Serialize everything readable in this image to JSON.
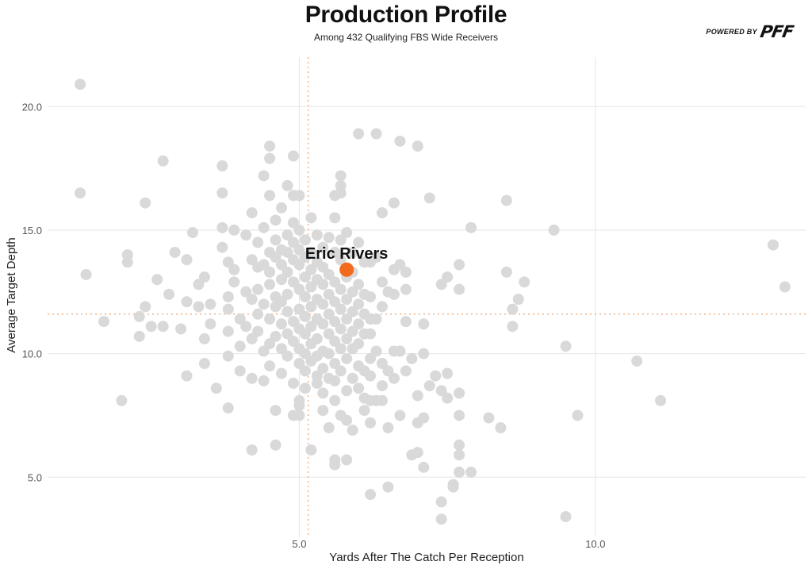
{
  "header": {
    "title": "Production Profile",
    "subtitle": "Among 432 Qualifying FBS Wide Receivers"
  },
  "brand": {
    "label": "POWERED BY",
    "name": "PFF"
  },
  "colors": {
    "points": "#d9d9d9",
    "highlight": "#f26a1b",
    "reference_lines": "#f4b183",
    "grid": "#e6e6e6"
  },
  "chart_data": {
    "type": "scatter",
    "title": "Production Profile",
    "subtitle": "Among 432 Qualifying FBS Wide Receivers",
    "xlabel": "Yards After The Catch Per Reception",
    "ylabel": "Average Target Depth",
    "xlim": [
      0.75,
      13.55
    ],
    "ylim": [
      2.6,
      22.0
    ],
    "x_ticks": [
      "5.0",
      "10.0"
    ],
    "y_ticks": [
      "5.0",
      "10.0",
      "15.0",
      "20.0"
    ],
    "grid": true,
    "reference_lines": {
      "x": 5.15,
      "y": 11.6
    },
    "highlight": {
      "name": "Eric Rivers",
      "x": 5.8,
      "y": 13.4
    },
    "points": [
      [
        1.3,
        20.9
      ],
      [
        1.3,
        16.5
      ],
      [
        1.4,
        13.2
      ],
      [
        1.7,
        11.3
      ],
      [
        2.0,
        8.1
      ],
      [
        2.1,
        14.0
      ],
      [
        2.1,
        13.7
      ],
      [
        2.3,
        11.5
      ],
      [
        2.3,
        10.7
      ],
      [
        2.4,
        11.9
      ],
      [
        2.4,
        16.1
      ],
      [
        2.5,
        11.1
      ],
      [
        2.6,
        13.0
      ],
      [
        2.7,
        17.8
      ],
      [
        2.7,
        11.1
      ],
      [
        2.8,
        12.4
      ],
      [
        2.9,
        14.1
      ],
      [
        3.0,
        11.0
      ],
      [
        3.1,
        13.8
      ],
      [
        3.1,
        12.1
      ],
      [
        3.1,
        9.1
      ],
      [
        3.2,
        14.9
      ],
      [
        3.3,
        12.8
      ],
      [
        3.3,
        11.9
      ],
      [
        3.4,
        13.1
      ],
      [
        3.4,
        10.6
      ],
      [
        3.4,
        9.6
      ],
      [
        3.5,
        12.0
      ],
      [
        3.5,
        11.2
      ],
      [
        3.6,
        8.6
      ],
      [
        3.7,
        17.6
      ],
      [
        3.7,
        16.5
      ],
      [
        3.7,
        15.1
      ],
      [
        3.7,
        14.3
      ],
      [
        3.8,
        13.7
      ],
      [
        3.8,
        12.3
      ],
      [
        3.8,
        11.8
      ],
      [
        3.8,
        10.9
      ],
      [
        3.8,
        9.9
      ],
      [
        3.8,
        7.8
      ],
      [
        3.9,
        15.0
      ],
      [
        3.9,
        13.4
      ],
      [
        3.9,
        12.9
      ],
      [
        4.0,
        11.4
      ],
      [
        4.0,
        10.3
      ],
      [
        4.0,
        9.3
      ],
      [
        4.1,
        14.8
      ],
      [
        4.1,
        12.5
      ],
      [
        4.1,
        11.1
      ],
      [
        4.2,
        15.7
      ],
      [
        4.2,
        13.8
      ],
      [
        4.2,
        12.2
      ],
      [
        4.2,
        10.6
      ],
      [
        4.2,
        9.0
      ],
      [
        4.2,
        6.1
      ],
      [
        4.3,
        14.5
      ],
      [
        4.3,
        13.5
      ],
      [
        4.3,
        12.6
      ],
      [
        4.3,
        11.6
      ],
      [
        4.3,
        10.9
      ],
      [
        4.4,
        17.2
      ],
      [
        4.4,
        15.1
      ],
      [
        4.4,
        13.6
      ],
      [
        4.4,
        12.0
      ],
      [
        4.4,
        10.1
      ],
      [
        4.4,
        8.9
      ],
      [
        4.5,
        18.4
      ],
      [
        4.5,
        17.9
      ],
      [
        4.5,
        16.4
      ],
      [
        4.5,
        14.1
      ],
      [
        4.5,
        13.3
      ],
      [
        4.5,
        12.8
      ],
      [
        4.5,
        11.4
      ],
      [
        4.5,
        10.4
      ],
      [
        4.5,
        9.5
      ],
      [
        4.6,
        15.4
      ],
      [
        4.6,
        14.6
      ],
      [
        4.6,
        13.9
      ],
      [
        4.6,
        12.3
      ],
      [
        4.6,
        11.9
      ],
      [
        4.6,
        10.7
      ],
      [
        4.6,
        7.7
      ],
      [
        4.6,
        6.3
      ],
      [
        4.7,
        15.9
      ],
      [
        4.7,
        14.2
      ],
      [
        4.7,
        13.6
      ],
      [
        4.7,
        13.0
      ],
      [
        4.7,
        12.1
      ],
      [
        4.7,
        11.2
      ],
      [
        4.7,
        10.2
      ],
      [
        4.7,
        9.2
      ],
      [
        4.8,
        16.8
      ],
      [
        4.8,
        14.8
      ],
      [
        4.8,
        14.1
      ],
      [
        4.8,
        13.3
      ],
      [
        4.8,
        12.4
      ],
      [
        4.8,
        11.7
      ],
      [
        4.8,
        10.8
      ],
      [
        4.8,
        9.9
      ],
      [
        4.9,
        18.0
      ],
      [
        4.9,
        16.4
      ],
      [
        4.9,
        15.3
      ],
      [
        4.9,
        14.5
      ],
      [
        4.9,
        13.8
      ],
      [
        4.9,
        12.9
      ],
      [
        4.9,
        11.3
      ],
      [
        4.9,
        10.5
      ],
      [
        4.9,
        8.8
      ],
      [
        4.9,
        7.5
      ],
      [
        5.0,
        16.4
      ],
      [
        5.0,
        15.0
      ],
      [
        5.0,
        14.2
      ],
      [
        5.0,
        13.6
      ],
      [
        5.0,
        12.6
      ],
      [
        5.0,
        11.8
      ],
      [
        5.0,
        11.0
      ],
      [
        5.0,
        10.2
      ],
      [
        5.0,
        9.6
      ],
      [
        5.0,
        8.1
      ],
      [
        5.0,
        7.9
      ],
      [
        5.0,
        7.5
      ],
      [
        5.1,
        14.6
      ],
      [
        5.1,
        13.9
      ],
      [
        5.1,
        13.1
      ],
      [
        5.1,
        12.3
      ],
      [
        5.1,
        11.5
      ],
      [
        5.1,
        10.8
      ],
      [
        5.1,
        10.0
      ],
      [
        5.1,
        9.3
      ],
      [
        5.1,
        8.6
      ],
      [
        5.2,
        15.5
      ],
      [
        5.2,
        14.1
      ],
      [
        5.2,
        13.4
      ],
      [
        5.2,
        12.7
      ],
      [
        5.2,
        11.9
      ],
      [
        5.2,
        11.1
      ],
      [
        5.2,
        10.4
      ],
      [
        5.2,
        9.7
      ],
      [
        5.2,
        6.1
      ],
      [
        5.3,
        14.8
      ],
      [
        5.3,
        13.7
      ],
      [
        5.3,
        13.0
      ],
      [
        5.3,
        12.2
      ],
      [
        5.3,
        11.4
      ],
      [
        5.3,
        10.6
      ],
      [
        5.3,
        9.9
      ],
      [
        5.3,
        9.1
      ],
      [
        5.3,
        8.8
      ],
      [
        5.4,
        14.3
      ],
      [
        5.4,
        13.5
      ],
      [
        5.4,
        12.8
      ],
      [
        5.4,
        12.0
      ],
      [
        5.4,
        11.2
      ],
      [
        5.4,
        10.1
      ],
      [
        5.4,
        9.4
      ],
      [
        5.4,
        8.4
      ],
      [
        5.4,
        7.7
      ],
      [
        5.5,
        14.7
      ],
      [
        5.5,
        13.2
      ],
      [
        5.5,
        12.4
      ],
      [
        5.5,
        11.6
      ],
      [
        5.5,
        10.8
      ],
      [
        5.5,
        10.0
      ],
      [
        5.5,
        9.0
      ],
      [
        5.5,
        7.0
      ],
      [
        5.6,
        16.4
      ],
      [
        5.6,
        15.5
      ],
      [
        5.6,
        14.1
      ],
      [
        5.6,
        12.9
      ],
      [
        5.6,
        12.1
      ],
      [
        5.6,
        11.3
      ],
      [
        5.6,
        10.5
      ],
      [
        5.6,
        9.6
      ],
      [
        5.6,
        8.9
      ],
      [
        5.6,
        8.1
      ],
      [
        5.6,
        5.7
      ],
      [
        5.6,
        5.5
      ],
      [
        5.7,
        17.2
      ],
      [
        5.7,
        16.8
      ],
      [
        5.7,
        16.5
      ],
      [
        5.7,
        14.6
      ],
      [
        5.7,
        13.8
      ],
      [
        5.7,
        12.6
      ],
      [
        5.7,
        11.8
      ],
      [
        5.7,
        11.0
      ],
      [
        5.7,
        10.2
      ],
      [
        5.7,
        9.3
      ],
      [
        5.7,
        7.5
      ],
      [
        5.8,
        14.9
      ],
      [
        5.8,
        13.1
      ],
      [
        5.8,
        12.2
      ],
      [
        5.8,
        11.4
      ],
      [
        5.8,
        10.6
      ],
      [
        5.8,
        9.8
      ],
      [
        5.8,
        8.5
      ],
      [
        5.8,
        7.3
      ],
      [
        5.8,
        5.7
      ],
      [
        5.9,
        14.1
      ],
      [
        5.9,
        13.3
      ],
      [
        5.9,
        12.5
      ],
      [
        5.9,
        11.7
      ],
      [
        5.9,
        10.9
      ],
      [
        5.9,
        10.2
      ],
      [
        5.9,
        9.0
      ],
      [
        5.9,
        6.9
      ],
      [
        6.0,
        18.9
      ],
      [
        6.0,
        14.5
      ],
      [
        6.0,
        12.8
      ],
      [
        6.0,
        12.0
      ],
      [
        6.0,
        11.2
      ],
      [
        6.0,
        10.4
      ],
      [
        6.0,
        9.5
      ],
      [
        6.0,
        8.6
      ],
      [
        6.1,
        13.7
      ],
      [
        6.1,
        12.4
      ],
      [
        6.1,
        11.6
      ],
      [
        6.1,
        10.8
      ],
      [
        6.1,
        9.3
      ],
      [
        6.1,
        8.2
      ],
      [
        6.1,
        7.7
      ],
      [
        6.2,
        13.7
      ],
      [
        6.2,
        12.3
      ],
      [
        6.2,
        11.4
      ],
      [
        6.2,
        10.8
      ],
      [
        6.2,
        9.8
      ],
      [
        6.2,
        9.1
      ],
      [
        6.2,
        8.1
      ],
      [
        6.2,
        7.2
      ],
      [
        6.2,
        4.3
      ],
      [
        6.3,
        18.9
      ],
      [
        6.3,
        13.9
      ],
      [
        6.3,
        11.4
      ],
      [
        6.3,
        10.1
      ],
      [
        6.3,
        8.1
      ],
      [
        6.4,
        15.7
      ],
      [
        6.4,
        12.9
      ],
      [
        6.4,
        11.9
      ],
      [
        6.4,
        9.6
      ],
      [
        6.4,
        8.7
      ],
      [
        6.4,
        8.1
      ],
      [
        6.5,
        12.5
      ],
      [
        6.5,
        9.3
      ],
      [
        6.5,
        7.0
      ],
      [
        6.5,
        4.6
      ],
      [
        6.6,
        16.1
      ],
      [
        6.6,
        13.4
      ],
      [
        6.6,
        12.4
      ],
      [
        6.6,
        10.1
      ],
      [
        6.6,
        9.0
      ],
      [
        6.7,
        18.6
      ],
      [
        6.7,
        13.6
      ],
      [
        6.7,
        10.1
      ],
      [
        6.7,
        7.5
      ],
      [
        6.8,
        13.3
      ],
      [
        6.8,
        12.6
      ],
      [
        6.8,
        11.3
      ],
      [
        6.8,
        9.3
      ],
      [
        6.9,
        9.8
      ],
      [
        6.9,
        5.9
      ],
      [
        7.0,
        18.4
      ],
      [
        7.0,
        8.3
      ],
      [
        7.0,
        7.2
      ],
      [
        7.0,
        6.0
      ],
      [
        7.1,
        11.2
      ],
      [
        7.1,
        10.0
      ],
      [
        7.1,
        7.4
      ],
      [
        7.1,
        5.4
      ],
      [
        7.2,
        16.3
      ],
      [
        7.2,
        8.7
      ],
      [
        7.3,
        9.1
      ],
      [
        7.4,
        12.8
      ],
      [
        7.4,
        8.5
      ],
      [
        7.4,
        4.0
      ],
      [
        7.4,
        3.3
      ],
      [
        7.5,
        13.1
      ],
      [
        7.5,
        9.2
      ],
      [
        7.5,
        8.2
      ],
      [
        7.6,
        4.6
      ],
      [
        7.6,
        4.7
      ],
      [
        7.7,
        13.6
      ],
      [
        7.7,
        12.6
      ],
      [
        7.7,
        8.4
      ],
      [
        7.7,
        7.5
      ],
      [
        7.7,
        6.3
      ],
      [
        7.7,
        5.9
      ],
      [
        7.7,
        5.2
      ],
      [
        7.9,
        15.1
      ],
      [
        7.9,
        5.2
      ],
      [
        8.2,
        7.4
      ],
      [
        8.4,
        7.0
      ],
      [
        8.5,
        16.2
      ],
      [
        8.5,
        13.3
      ],
      [
        8.6,
        11.8
      ],
      [
        8.6,
        11.1
      ],
      [
        8.7,
        12.2
      ],
      [
        8.8,
        12.9
      ],
      [
        9.3,
        15.0
      ],
      [
        9.5,
        10.3
      ],
      [
        9.5,
        3.4
      ],
      [
        9.7,
        7.5
      ],
      [
        10.7,
        9.7
      ],
      [
        11.1,
        8.1
      ],
      [
        13.0,
        14.4
      ],
      [
        13.2,
        12.7
      ]
    ]
  }
}
